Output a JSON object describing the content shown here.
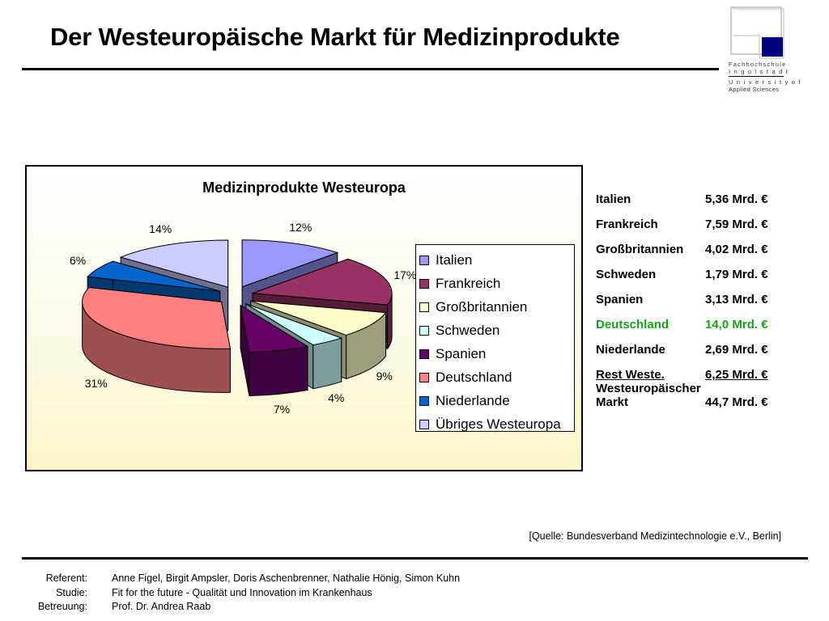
{
  "header": {
    "title": "Der Westeuropäische Markt für Medizinprodukte"
  },
  "logo": {
    "line1": "Fachhochschule",
    "line2": "I n g o l s t a d t",
    "line3": "U n i v e r s i t y  o f",
    "line4": "Applied Sciences"
  },
  "chart_data": {
    "type": "pie",
    "title": "Medizinprodukte Westeuropa",
    "legend_position": "right",
    "categories": [
      "Italien",
      "Frankreich",
      "Großbritannien",
      "Schweden",
      "Spanien",
      "Deutschland",
      "Niederlande",
      "Übriges Westeuropa"
    ],
    "values": [
      12,
      17,
      9,
      4,
      7,
      31,
      6,
      14
    ],
    "labels": [
      "12%",
      "17%",
      "9%",
      "4%",
      "7%",
      "31%",
      "6%",
      "14%"
    ],
    "colors": [
      "#9999ff",
      "#993366",
      "#ffffcc",
      "#ccffff",
      "#660066",
      "#ff8080",
      "#0066cc",
      "#ccccff"
    ],
    "exploded": true,
    "three_d": true
  },
  "values_table": [
    {
      "country": "Italien",
      "amount": "5,36 Mrd. €",
      "highlight": false,
      "underline": false
    },
    {
      "country": "Frankreich",
      "amount": "7,59 Mrd. €",
      "highlight": false,
      "underline": false
    },
    {
      "country": "Großbritannien",
      "amount": "4,02 Mrd. €",
      "highlight": false,
      "underline": false
    },
    {
      "country": "Schweden",
      "amount": "1,79 Mrd. €",
      "highlight": false,
      "underline": false
    },
    {
      "country": "Spanien",
      "amount": "3,13 Mrd. €",
      "highlight": false,
      "underline": false
    },
    {
      "country": "Deutschland",
      "amount": "14,0 Mrd. €",
      "highlight": true,
      "underline": false
    },
    {
      "country": "Niederlande",
      "amount": "2,69 Mrd. €",
      "highlight": false,
      "underline": false
    },
    {
      "country": "Rest Weste.",
      "amount": "6,25 Mrd. €",
      "highlight": false,
      "underline": true
    }
  ],
  "total": {
    "label_line1": "Westeuropäischer",
    "label_line2": "Markt",
    "amount": "44,7 Mrd. €"
  },
  "colors": {
    "highlight": "#1aa01a",
    "logo_blue": "#000080"
  },
  "source": "[Quelle: Bundesverband Medizintechnologie e.V., Berlin]",
  "footer": [
    {
      "label": "Referent:",
      "value": "Anne Figel, Birgit Ampsler, Doris Aschenbrenner, Nathalie Hönig, Simon Kuhn"
    },
    {
      "label": "Studie:",
      "value": "Fit for the future - Qualität und Innovation im Krankenhaus"
    },
    {
      "label": "Betreuung:",
      "value": "Prof. Dr. Andrea Raab"
    }
  ]
}
